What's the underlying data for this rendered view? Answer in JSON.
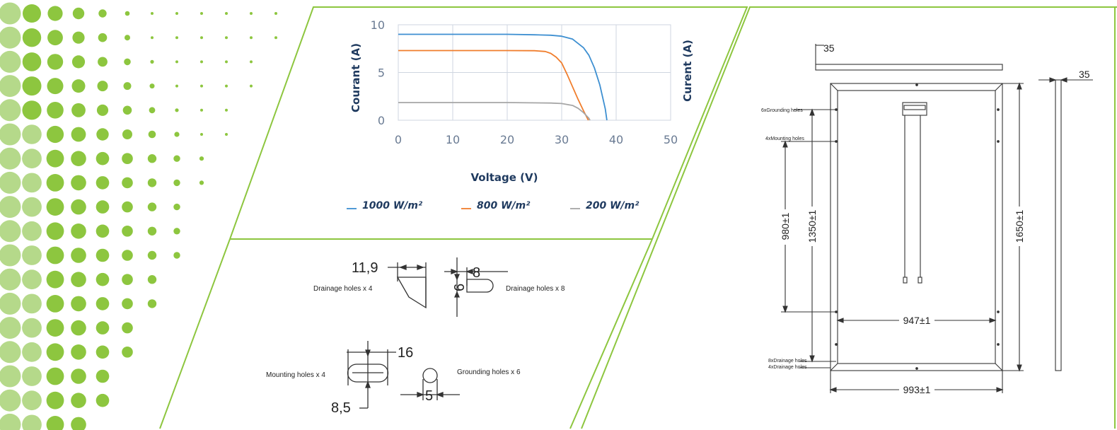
{
  "colors": {
    "accent_green": "#8dc63f",
    "dot_green": "#8dc63f",
    "dot_light_green": "#b5d98a",
    "axis_navy": "#1f3a5f",
    "grid": "#cfd6e0",
    "drawing": "#333333"
  },
  "chart_data": {
    "type": "line",
    "title": "",
    "xlabel": "Voltage (V)",
    "ylabel_left": "Courant (A)",
    "ylabel_right": "Curent (A)",
    "xlim": [
      0,
      50
    ],
    "ylim": [
      0,
      10
    ],
    "x_ticks": [
      "0",
      "10",
      "20",
      "30",
      "40",
      "50"
    ],
    "y_ticks": [
      "0",
      "5",
      "10"
    ],
    "grid": true,
    "legend_position": "bottom",
    "series": [
      {
        "name": "1000 W/m²",
        "color": "#3d8fd1",
        "points": [
          [
            0,
            9.0
          ],
          [
            10,
            9.0
          ],
          [
            20,
            9.0
          ],
          [
            25,
            8.95
          ],
          [
            28,
            8.9
          ],
          [
            30,
            8.8
          ],
          [
            32,
            8.5
          ],
          [
            34,
            7.6
          ],
          [
            35,
            6.8
          ],
          [
            36,
            5.5
          ],
          [
            37,
            3.7
          ],
          [
            38,
            1.2
          ],
          [
            38.3,
            0
          ]
        ]
      },
      {
        "name": "800 W/m²",
        "color": "#f07d2c",
        "points": [
          [
            0,
            7.3
          ],
          [
            10,
            7.3
          ],
          [
            20,
            7.3
          ],
          [
            25,
            7.28
          ],
          [
            27,
            7.2
          ],
          [
            28,
            7.0
          ],
          [
            29,
            6.6
          ],
          [
            30,
            6.0
          ],
          [
            31,
            4.8
          ],
          [
            32,
            3.5
          ],
          [
            33,
            2.2
          ],
          [
            34,
            1.0
          ],
          [
            34.9,
            0
          ]
        ]
      },
      {
        "name": "200 W/m²",
        "color": "#a6a6a6",
        "points": [
          [
            0,
            1.85
          ],
          [
            10,
            1.85
          ],
          [
            20,
            1.85
          ],
          [
            28,
            1.8
          ],
          [
            30,
            1.75
          ],
          [
            32,
            1.55
          ],
          [
            33,
            1.25
          ],
          [
            34,
            0.8
          ],
          [
            35,
            0.2
          ],
          [
            35.2,
            0
          ]
        ]
      }
    ]
  },
  "holes": {
    "drainage4_dim": "11,9",
    "drainage4_label": "Drainage holes x 4",
    "drainage8_width": "8",
    "drainage8_height": "6",
    "drainage8_label": "Drainage holes x 8",
    "mounting_width": "16",
    "mounting_height": "8,5",
    "mounting_label": "Mounting holes x 4",
    "grounding_dim": "5",
    "grounding_label": "Grounding holes x 6"
  },
  "panel": {
    "frame_top_thickness": "35",
    "frame_side_thickness": "35",
    "grounding_holes": "6xGrounding holes",
    "mounting_holes": "4xMounting holes",
    "drainage8": "8xDrainage holes",
    "drainage4": "4xDrainage holes",
    "dim_980": "980±1",
    "dim_1350": "1350±1",
    "dim_1650": "1650±1",
    "dim_947": "947±1",
    "dim_993": "993±1"
  }
}
